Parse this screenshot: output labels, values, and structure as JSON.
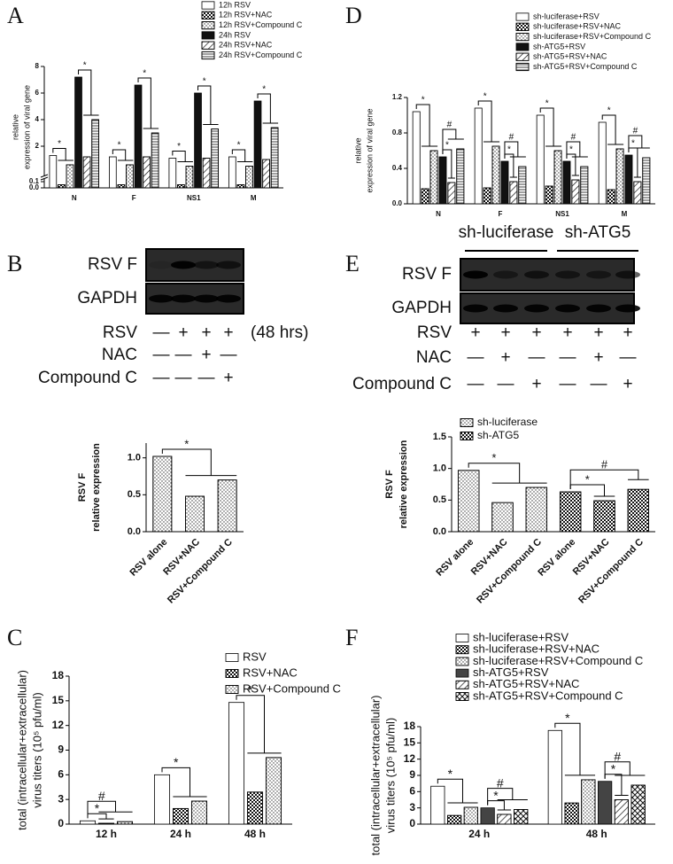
{
  "panel_labels": [
    "A",
    "B",
    "C",
    "D",
    "E",
    "F"
  ],
  "blots": [
    {
      "bands": [
        "RSV F",
        "GAPDH"
      ],
      "time": "(48 hrs)",
      "rows": [
        {
          "label": "RSV",
          "marks": [
            "—",
            "+",
            "+",
            "+"
          ]
        },
        {
          "label": "NAC",
          "marks": [
            "—",
            "—",
            "+",
            "—"
          ]
        },
        {
          "label": "Compound C",
          "marks": [
            "—",
            "—",
            "—",
            "+"
          ]
        }
      ]
    },
    {
      "groups": [
        "sh-luciferase",
        "sh-ATG5"
      ],
      "bands": [
        "RSV F",
        "GAPDH"
      ],
      "rows": [
        {
          "label": "RSV",
          "marks": [
            "+",
            "+",
            "+",
            "+",
            "+",
            "+"
          ]
        },
        {
          "label": "NAC",
          "marks": [
            "—",
            "+",
            "—",
            "—",
            "+",
            "—"
          ]
        },
        {
          "label": "Compound C",
          "marks": [
            "—",
            "—",
            "+",
            "—",
            "—",
            "+"
          ]
        }
      ]
    }
  ],
  "chart_data": [
    {
      "type": "bar",
      "ylabel": [
        "relative",
        "expression of viral gene"
      ],
      "categories": [
        "N",
        "F",
        "NS1",
        "M"
      ],
      "series": [
        {
          "name": "12h RSV",
          "color": "#ffffff",
          "values": [
            1.3,
            1.2,
            1.1,
            1.2
          ]
        },
        {
          "name": "12h RSV+NAC",
          "color": "#ffffff",
          "pattern": "checker",
          "values": [
            0.05,
            0.05,
            0.05,
            0.05
          ]
        },
        {
          "name": "12h RSV+Compound C",
          "color": "#ffffff",
          "pattern": "dots",
          "values": [
            0.6,
            0.6,
            0.5,
            0.5
          ]
        },
        {
          "name": "24h RSV",
          "color": "#111111",
          "values": [
            7.2,
            6.6,
            6.0,
            5.4
          ]
        },
        {
          "name": "24h RSV+NAC",
          "color": "#ffffff",
          "pattern": "hatch",
          "values": [
            1.2,
            1.2,
            1.1,
            1.0
          ]
        },
        {
          "name": "24h RSV+Compound C",
          "color": "#ffffff",
          "pattern": "hlines",
          "values": [
            4.0,
            3.0,
            3.3,
            3.4
          ]
        }
      ],
      "ylim": [
        0,
        8
      ],
      "axis_break": {
        "lower": [
          0,
          0.1
        ]
      },
      "yticks": [
        {
          "value": 0,
          "label": "0.0"
        },
        {
          "value": 0.1,
          "label": "0.1"
        },
        2,
        4,
        6,
        8
      ],
      "annotations": [
        {
          "category": 0,
          "from": 0,
          "to": [
            1,
            2
          ],
          "label": "*"
        },
        {
          "category": 0,
          "from": 3,
          "to": [
            4,
            5
          ],
          "label": "*"
        },
        {
          "category": 1,
          "from": 0,
          "to": [
            1,
            2
          ],
          "label": "*"
        },
        {
          "category": 1,
          "from": 3,
          "to": [
            4,
            5
          ],
          "label": "*"
        },
        {
          "category": 2,
          "from": 0,
          "to": [
            1,
            2
          ],
          "label": "*"
        },
        {
          "category": 2,
          "from": 3,
          "to": [
            4,
            5
          ],
          "label": "*"
        },
        {
          "category": 3,
          "from": 0,
          "to": [
            1,
            2
          ],
          "label": "*"
        },
        {
          "category": 3,
          "from": 3,
          "to": [
            4,
            5
          ],
          "label": "*"
        }
      ]
    },
    {
      "type": "bar",
      "ylabel": [
        "RSV F",
        "relative expression"
      ],
      "categories": [
        "RSV alone",
        "RSV+NAC",
        "RSV+Compound C"
      ],
      "series": [
        {
          "color": "#ffffff",
          "pattern": "dots",
          "values": [
            1.02,
            0.48,
            0.7
          ]
        }
      ],
      "ylim": [
        0,
        1.2
      ],
      "yticks": [
        {
          "value": 0,
          "label": "0.0"
        },
        0.5,
        {
          "value": 1,
          "label": "1.0"
        }
      ],
      "annotations": [
        {
          "from": 0,
          "to": [
            1,
            2
          ],
          "label": "*"
        }
      ]
    },
    {
      "type": "bar",
      "ylabel": [
        "total (intracellular+extracellular)",
        "virus titers (10⁵ pfu/ml)"
      ],
      "categories": [
        "12 h",
        "24 h",
        "48 h"
      ],
      "series": [
        {
          "name": "RSV",
          "color": "#ffffff",
          "values": [
            0.4,
            6.0,
            14.8
          ]
        },
        {
          "name": "RSV+NAC",
          "color": "#ffffff",
          "pattern": "checker",
          "values": [
            0.1,
            1.9,
            3.9
          ]
        },
        {
          "name": "RSV+Compound C",
          "color": "#ffffff",
          "pattern": "dots",
          "values": [
            0.3,
            2.8,
            8.1
          ]
        }
      ],
      "ylim": [
        0,
        18
      ],
      "yticks": [
        0,
        3,
        6,
        9,
        12,
        15,
        18
      ],
      "annotations": [
        {
          "category": 0,
          "from": 0,
          "to": [
            1
          ],
          "label": "*"
        },
        {
          "category": 0,
          "from": 0,
          "to": [
            1,
            2
          ],
          "label": "#"
        },
        {
          "category": 1,
          "from": 0,
          "to": [
            1,
            2
          ],
          "label": "*"
        },
        {
          "category": 2,
          "from": 0,
          "to": [
            1,
            2
          ],
          "label": "*"
        }
      ]
    },
    {
      "type": "bar",
      "ylabel": [
        "relative",
        "expression of viral gene"
      ],
      "categories": [
        "N",
        "F",
        "NS1",
        "M"
      ],
      "series": [
        {
          "name": "sh-luciferase+RSV",
          "color": "#ffffff",
          "values": [
            1.04,
            1.08,
            1.0,
            0.92
          ]
        },
        {
          "name": "sh-luciferase+RSV+NAC",
          "color": "#ffffff",
          "pattern": "checker",
          "values": [
            0.17,
            0.18,
            0.2,
            0.16
          ]
        },
        {
          "name": "sh-luciferase+RSV+Compound C",
          "color": "#ffffff",
          "pattern": "dots",
          "values": [
            0.6,
            0.65,
            0.6,
            0.62
          ]
        },
        {
          "name": "sh-ATG5+RSV",
          "color": "#111111",
          "values": [
            0.53,
            0.48,
            0.48,
            0.55
          ]
        },
        {
          "name": "sh-ATG5+RSV+NAC",
          "color": "#ffffff",
          "pattern": "hatch",
          "values": [
            0.24,
            0.25,
            0.27,
            0.25
          ]
        },
        {
          "name": "sh-ATG5+RSV+Compound C",
          "color": "#ffffff",
          "pattern": "hlines",
          "values": [
            0.62,
            0.42,
            0.42,
            0.52
          ]
        }
      ],
      "ylim": [
        0,
        1.2
      ],
      "yticks": [
        {
          "value": 0,
          "label": "0.0"
        },
        0.4,
        0.8,
        1.2
      ],
      "annotations": [
        {
          "category": 0,
          "from": 0,
          "to": [
            1,
            2
          ],
          "label": "*"
        },
        {
          "category": 0,
          "from": 3,
          "to": [
            4
          ],
          "label": "*"
        },
        {
          "category": 0,
          "from": 3,
          "to": [
            4,
            5
          ],
          "label": "#"
        },
        {
          "category": 1,
          "from": 0,
          "to": [
            1,
            2
          ],
          "label": "*"
        },
        {
          "category": 1,
          "from": 3,
          "to": [
            4
          ],
          "label": "*"
        },
        {
          "category": 1,
          "from": 3,
          "to": [
            4,
            5
          ],
          "label": "#"
        },
        {
          "category": 2,
          "from": 0,
          "to": [
            1,
            2
          ],
          "label": "*"
        },
        {
          "category": 2,
          "from": 3,
          "to": [
            4
          ],
          "label": "*"
        },
        {
          "category": 2,
          "from": 3,
          "to": [
            4,
            5
          ],
          "label": "#"
        },
        {
          "category": 3,
          "from": 0,
          "to": [
            1,
            2
          ],
          "label": "*"
        },
        {
          "category": 3,
          "from": 3,
          "to": [
            4
          ],
          "label": "*"
        },
        {
          "category": 3,
          "from": 3,
          "to": [
            4,
            5
          ],
          "label": "#"
        }
      ]
    },
    {
      "type": "bar",
      "ylabel": [
        "RSV F",
        "relative expression"
      ],
      "categories": [
        "RSV alone",
        "RSV+NAC",
        "RSV+Compound C",
        "RSV alone",
        "RSV+NAC",
        "RSV+Compound C"
      ],
      "series": [
        {
          "name": "sh-luciferase",
          "color": "#ffffff",
          "pattern": "dots",
          "values": [
            0.97,
            0.46,
            0.7,
            null,
            null,
            null
          ]
        },
        {
          "name": "sh-ATG5",
          "color": "#ffffff",
          "pattern": "checker",
          "values": [
            null,
            null,
            null,
            0.63,
            0.49,
            0.67
          ]
        }
      ],
      "ylim": [
        0,
        1.5
      ],
      "yticks": [
        {
          "value": 0,
          "label": "0.0"
        },
        0.5,
        {
          "value": 1,
          "label": "1.0"
        },
        1.5
      ],
      "annotations": [
        {
          "from": 0,
          "to": [
            1,
            2
          ],
          "label": "*"
        },
        {
          "from": 3,
          "to": [
            4
          ],
          "label": "*"
        },
        {
          "from": 3,
          "to": [
            5
          ],
          "label": "#"
        }
      ]
    },
    {
      "type": "bar",
      "ylabel": [
        "total (intracellular+extracellular)",
        "virus titers (10⁵ pfu/ml)"
      ],
      "categories": [
        "24 h",
        "48 h"
      ],
      "series": [
        {
          "name": "sh-luciferase+RSV",
          "color": "#ffffff",
          "values": [
            7.0,
            17.3
          ]
        },
        {
          "name": "sh-luciferase+RSV+NAC",
          "color": "#ffffff",
          "pattern": "checker",
          "values": [
            1.6,
            3.9
          ]
        },
        {
          "name": "sh-luciferase+RSV+Compound C",
          "color": "#ffffff",
          "pattern": "dots",
          "values": [
            3.1,
            8.2
          ]
        },
        {
          "name": "sh-ATG5+RSV",
          "color": "#444444",
          "values": [
            3.0,
            7.9
          ]
        },
        {
          "name": "sh-ATG5+RSV+NAC",
          "color": "#ffffff",
          "pattern": "hatch",
          "values": [
            1.8,
            4.5
          ]
        },
        {
          "name": "sh-ATG5+RSV+Compound C",
          "color": "#ffffff",
          "pattern": "cross",
          "values": [
            2.7,
            7.2
          ]
        }
      ],
      "ylim": [
        0,
        18
      ],
      "yticks": [
        0,
        3,
        6,
        9,
        12,
        15,
        18
      ],
      "annotations": [
        {
          "category": 0,
          "from": 0,
          "to": [
            1,
            2
          ],
          "label": "*"
        },
        {
          "category": 0,
          "from": 3,
          "to": [
            4
          ],
          "label": "*"
        },
        {
          "category": 0,
          "from": 3,
          "to": [
            4,
            5
          ],
          "label": "#"
        },
        {
          "category": 1,
          "from": 0,
          "to": [
            1,
            2
          ],
          "label": "*"
        },
        {
          "category": 1,
          "from": 3,
          "to": [
            4
          ],
          "label": "*"
        },
        {
          "category": 1,
          "from": 3,
          "to": [
            4,
            5
          ],
          "label": "#"
        }
      ]
    }
  ]
}
